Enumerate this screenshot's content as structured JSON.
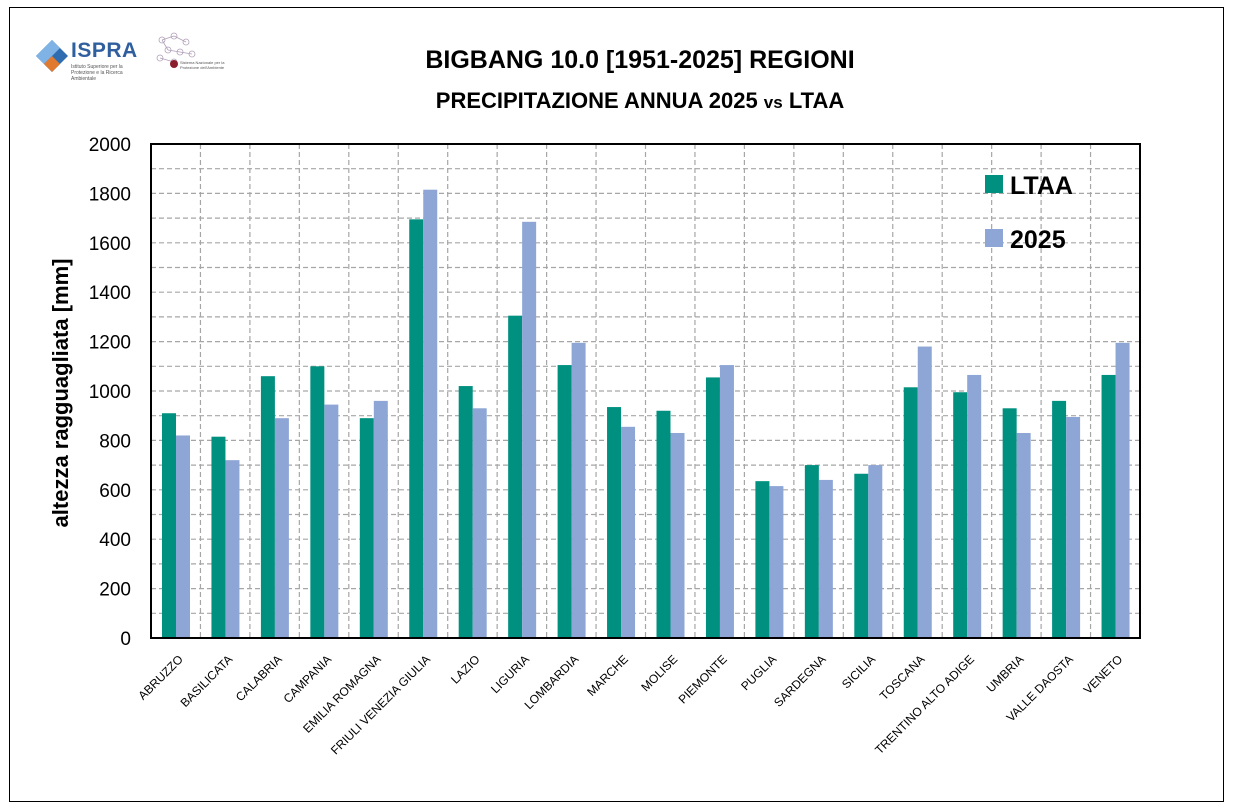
{
  "logos": {
    "ispra_text": "ISPRA",
    "ispra_sub": "Istituto Superiore per la Protezione e la Ricerca Ambientale",
    "snpa_text": "Sistema Nazionale per la Protezione dell'Ambiente"
  },
  "colors": {
    "ltaa": "#00907F",
    "y2025": "#8EA6D6",
    "grid": "#A6A6A6",
    "axis": "#000000"
  },
  "chart_data": {
    "type": "bar",
    "title": "BIGBANG 10.0 [1951-2025] REGIONI",
    "subtitle_main": "PRECIPITAZIONE ANNUA 2025 ",
    "subtitle_vs": "vs",
    "subtitle_tail": " LTAA",
    "xlabel": "",
    "ylabel": "altezza ragguagliata [mm]",
    "ylim": [
      0,
      2000
    ],
    "yticks": [
      0,
      200,
      400,
      600,
      800,
      1000,
      1200,
      1400,
      1600,
      1800,
      2000
    ],
    "grid": true,
    "legend_position": "top-right",
    "categories": [
      "ABRUZZO",
      "BASILICATA",
      "CALABRIA",
      "CAMPANIA",
      "EMILIA ROMAGNA",
      "FRIULI VENEZIA GIULIA",
      "LAZIO",
      "LIGURIA",
      "LOMBARDIA",
      "MARCHE",
      "MOLISE",
      "PIEMONTE",
      "PUGLIA",
      "SARDEGNA",
      "SICILIA",
      "TOSCANA",
      "TRENTINO ALTO ADIGE",
      "UMBRIA",
      "VALLE DAOSTA",
      "VENETO"
    ],
    "series": [
      {
        "name": "LTAA",
        "values": [
          910,
          815,
          1060,
          1100,
          890,
          1695,
          1020,
          1305,
          1105,
          935,
          920,
          1055,
          635,
          700,
          665,
          1015,
          995,
          930,
          960,
          1065
        ]
      },
      {
        "name": "2025",
        "values": [
          820,
          720,
          890,
          945,
          960,
          1815,
          930,
          1685,
          1195,
          855,
          830,
          1105,
          615,
          640,
          700,
          1180,
          1065,
          830,
          895,
          1195
        ]
      }
    ]
  }
}
